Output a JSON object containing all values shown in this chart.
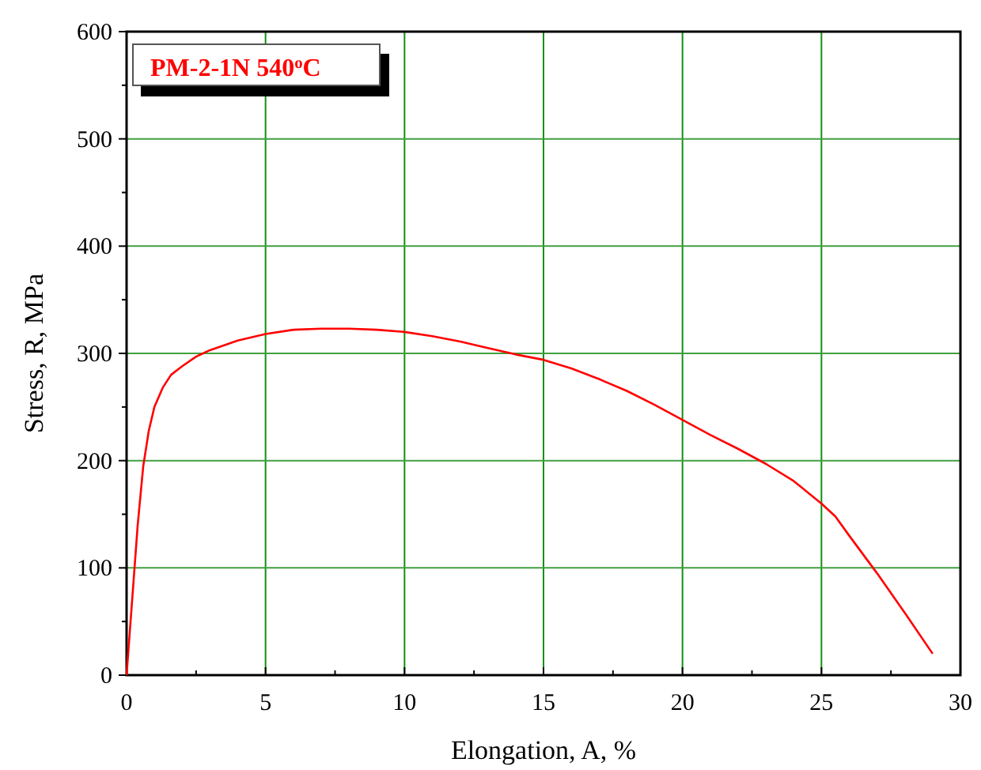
{
  "chart_data": {
    "type": "line",
    "xlabel": "Elongation,  A, %",
    "ylabel": "Stress,  R, MPa",
    "annotations": [
      "PM-2-1N  540$^{o}$C"
    ],
    "xlim": [
      0,
      30
    ],
    "ylim": [
      0,
      600
    ],
    "xticks": [
      0,
      {
        "value": 2.5,
        "label": null
      },
      5,
      {
        "value": 7.5,
        "label": null
      },
      10,
      {
        "value": 12.5,
        "label": null
      },
      15,
      {
        "value": 17.5,
        "label": null
      },
      20,
      {
        "value": 22.5,
        "label": null
      },
      25,
      {
        "value": 27.5,
        "label": null
      },
      30
    ],
    "yticks": [
      0,
      {
        "value": 50,
        "label": null
      },
      100,
      {
        "value": 150,
        "label": null
      },
      200,
      {
        "value": 250,
        "label": null
      },
      300,
      {
        "value": 350,
        "label": null
      },
      400,
      {
        "value": 450,
        "label": null
      },
      500,
      {
        "value": 550,
        "label": null
      },
      600
    ],
    "grid": true,
    "marker": "none",
    "line_style": "solid",
    "series": [
      {
        "color": "#ff0000",
        "x": [
          0,
          0.2,
          0.4,
          0.6,
          0.8,
          1,
          1.3,
          1.6,
          2,
          2.5,
          3,
          4,
          5,
          6,
          7,
          8,
          9,
          10,
          11,
          12,
          13,
          14,
          15,
          16,
          17,
          18,
          19,
          20,
          21,
          22,
          23,
          24,
          25,
          25.5,
          26,
          27,
          28,
          29
        ],
        "values": [
          0,
          70,
          140,
          195,
          228,
          250,
          268,
          280,
          288,
          297,
          303,
          312,
          318,
          322,
          323,
          323,
          322,
          320,
          316,
          311,
          305,
          299,
          294,
          286,
          276,
          265,
          252,
          238,
          224,
          211,
          197,
          181,
          160,
          148,
          130,
          95,
          58,
          20
        ]
      }
    ]
  }
}
